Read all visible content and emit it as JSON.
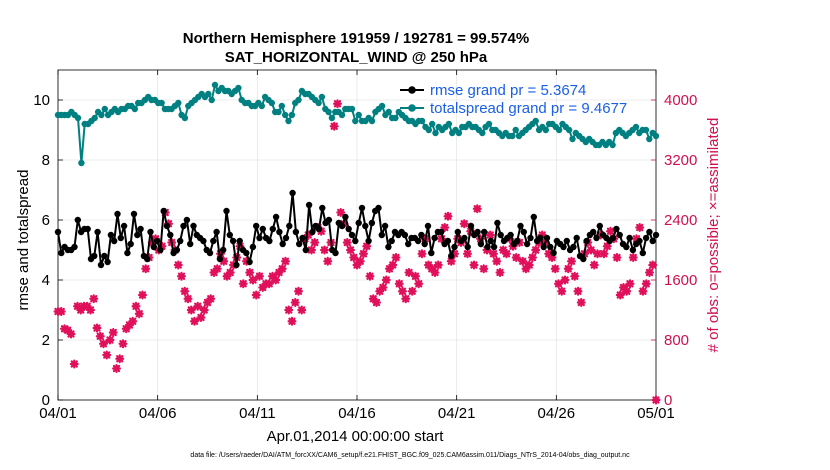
{
  "colors": {
    "rmse": "#000000",
    "totalspread": "#008080",
    "obs": "#E0105A",
    "axis_left": "#000000",
    "axis_right": "#D0104F",
    "legend_text": "#1A5FE8"
  },
  "chart_data": {
    "type": "line",
    "title": "Northern Hemisphere 191959 / 192781 = 99.574%",
    "subtitle": "SAT_HORIZONTAL_WIND @ 250 hPa",
    "xlabel": "Apr.01,2014 00:00:00 start",
    "ylabel_left": "rmse and totalspread",
    "ylabel_right": "# of obs: o=possible; ×=assimilated",
    "footnote": "data file: /Users/raeder/DAI/ATM_forcXX/CAM6_setup/f.e21.FHIST_BGC.f09_025.CAM6assim.011/Diags_NTrS_2014-04/obs_diag_output.nc",
    "xlim": [
      0,
      30
    ],
    "ylim_left": [
      0,
      11
    ],
    "ylim_right": [
      0,
      4400
    ],
    "x_ticks": [
      0,
      5,
      10,
      15,
      20,
      25,
      30
    ],
    "x_tick_labels": [
      "04/01",
      "04/06",
      "04/11",
      "04/16",
      "04/21",
      "04/26",
      "05/01"
    ],
    "y_ticks_left": [
      0,
      2,
      4,
      6,
      8,
      10
    ],
    "y_tick_labels_left": [
      "0",
      "2",
      "4",
      "6",
      "8",
      "10"
    ],
    "y_ticks_right": [
      0,
      800,
      1600,
      2400,
      3200,
      4000
    ],
    "y_tick_labels_right": [
      "0",
      "800",
      "1600",
      "2400",
      "3200",
      "4000"
    ],
    "grid": true,
    "legend_position": "top-right",
    "series": [
      {
        "name": "rmse grand pr = 5.3674",
        "axis": "left",
        "marker": "dot",
        "values": [
          5.6,
          4.9,
          5.1,
          5.0,
          5.0,
          5.1,
          6.0,
          5.6,
          5.7,
          5.7,
          4.7,
          4.8,
          5.6,
          4.5,
          4.8,
          4.6,
          5.5,
          5.3,
          6.2,
          5.4,
          5.8,
          4.9,
          5.2,
          6.2,
          5.5,
          5.7,
          4.8,
          4.7,
          5.6,
          5.1,
          5.3,
          5.0,
          6.3,
          5.8,
          5.5,
          4.9,
          5.0,
          5.3,
          5.8,
          6.0,
          5.2,
          5.8,
          5.5,
          5.4,
          5.3,
          5.0,
          4.9,
          5.3,
          5.6,
          4.7,
          5.0,
          6.3,
          5.5,
          5.3,
          4.5,
          5.3,
          5.0,
          4.9,
          4.6,
          5.1,
          5.8,
          5.4,
          5.7,
          5.4,
          5.3,
          5.7,
          6.1,
          5.6,
          5.2,
          5.4,
          5.8,
          6.9,
          5.6,
          5.2,
          5.4,
          5.0,
          6.5,
          5.6,
          5.8,
          5.7,
          6.4,
          5.9,
          6.0,
          5.0,
          4.9,
          5.9,
          5.8,
          6.1,
          5.7,
          5.5,
          5.3,
          5.9,
          6.4,
          5.8,
          5.3,
          5.9,
          6.3,
          6.4,
          5.5,
          5.8,
          5.1,
          5.3,
          5.6,
          5.5,
          5.6,
          5.5,
          5.2,
          5.4,
          5.4,
          5.3,
          5.5,
          5.2,
          5.8,
          4.9,
          5.4,
          5.6,
          5.6,
          5.2,
          5.3,
          4.8,
          5.1,
          5.6,
          5.3,
          5.4,
          5.1,
          5.8,
          5.5,
          5.6,
          5.2,
          5.6,
          5.1,
          5.3,
          5.1,
          5.9,
          5.5,
          5.3,
          5.4,
          5.5,
          5.2,
          5.3,
          5.8,
          5.6,
          5.2,
          5.4,
          6.1,
          5.3,
          5.4,
          5.1,
          5.4,
          5.1,
          4.9,
          5.3,
          5.2,
          5.1,
          5.3,
          5.0,
          5.1,
          5.4,
          4.8,
          4.7,
          5.3,
          5.5,
          5.6,
          5.4,
          5.8,
          5.5,
          5.4,
          5.3,
          5.4,
          5.7,
          5.5,
          5.2,
          5.1,
          5.4,
          5.0,
          5.2,
          5.3,
          4.9,
          5.4,
          5.6,
          5.3,
          5.5
        ]
      },
      {
        "name": "totalspread grand pr = 9.4677",
        "axis": "left",
        "marker": "dot",
        "values": [
          9.5,
          9.5,
          9.5,
          9.5,
          9.6,
          9.5,
          9.4,
          7.9,
          9.2,
          9.2,
          9.3,
          9.4,
          9.6,
          9.5,
          9.7,
          9.5,
          9.6,
          9.7,
          9.6,
          9.7,
          9.7,
          9.8,
          9.8,
          9.7,
          9.9,
          9.9,
          10.0,
          10.1,
          10.0,
          10.0,
          9.9,
          9.9,
          9.7,
          9.7,
          9.7,
          9.8,
          9.9,
          9.5,
          9.4,
          9.8,
          9.9,
          10.0,
          10.1,
          10.2,
          10.1,
          10.2,
          10.0,
          10.5,
          10.3,
          10.4,
          10.3,
          10.3,
          10.2,
          10.3,
          10.4,
          10.0,
          9.9,
          9.9,
          9.8,
          9.8,
          9.9,
          9.8,
          10.1,
          10.0,
          9.9,
          9.6,
          9.6,
          9.8,
          9.5,
          9.3,
          9.5,
          9.9,
          10.0,
          10.3,
          10.2,
          10.2,
          10.1,
          10.0,
          9.9,
          10.1,
          9.7,
          9.6,
          9.4,
          9.6,
          9.6,
          9.5,
          9.7,
          9.7,
          9.7,
          9.3,
          9.5,
          9.3,
          9.3,
          9.4,
          9.3,
          9.6,
          9.7,
          9.8,
          9.5,
          9.6,
          9.4,
          9.4,
          9.6,
          9.5,
          9.4,
          9.3,
          9.3,
          9.2,
          9.3,
          9.3,
          9.1,
          9.0,
          9.2,
          8.9,
          9.1,
          9.0,
          9.1,
          9.2,
          8.9,
          9.0,
          8.9,
          9.1,
          9.1,
          9.2,
          9.1,
          9.1,
          9.0,
          8.9,
          9.1,
          9.2,
          9.0,
          9.0,
          8.9,
          8.8,
          8.9,
          8.8,
          8.8,
          9.0,
          8.8,
          8.9,
          9.0,
          9.1,
          9.2,
          9.3,
          9.0,
          9.1,
          9.0,
          9.2,
          9.2,
          9.1,
          9.0,
          9.2,
          9.1,
          9.0,
          8.7,
          8.9,
          8.8,
          8.7,
          8.6,
          8.7,
          8.6,
          8.5,
          8.5,
          8.6,
          8.5,
          8.6,
          8.5,
          8.9,
          9.0,
          8.9,
          8.8,
          8.9,
          9.0,
          9.1,
          8.9,
          9.0,
          9.0,
          8.7,
          8.9,
          8.8
        ]
      }
    ],
    "obs_assimilated": {
      "axis": "right",
      "marker": "asterisk",
      "values": [
        1180,
        1180,
        950,
        930,
        880,
        480,
        1250,
        1200,
        1250,
        1250,
        1200,
        1350,
        960,
        850,
        750,
        600,
        800,
        900,
        420,
        550,
        750,
        950,
        1000,
        1050,
        1250,
        1150,
        1400,
        1750,
        1900,
        2100,
        2150,
        2000,
        2050,
        2500,
        2350,
        2100,
        2000,
        1800,
        1650,
        1450,
        1350,
        1200,
        1050,
        1250,
        1100,
        1200,
        1300,
        1350,
        1700,
        1750,
        1950,
        1850,
        1650,
        1700,
        1800,
        1900,
        2050,
        1550,
        1850,
        1700,
        1600,
        1400,
        1650,
        1500,
        1550,
        1550,
        1650,
        1600,
        1700,
        1750,
        1850,
        1200,
        1050,
        1300,
        1450,
        1200,
        2150,
        2200,
        2000,
        2100,
        2300,
        2250,
        2000,
        1850,
        2100,
        3650,
        3950,
        2500,
        2350,
        2100,
        2000,
        1900,
        1800,
        1850,
        1950,
        2050,
        1650,
        1350,
        1300,
        1450,
        1500,
        1600,
        1750,
        1800,
        1900,
        1550,
        1450,
        1350,
        1700,
        1450,
        1650,
        1550,
        1950,
        2150,
        1800,
        1750,
        1700,
        1800,
        2150,
        2300,
        2450,
        1850,
        1950,
        2150,
        2100,
        2350,
        1950,
        2250,
        1800,
        2550,
        2150,
        1750,
        2000,
        2200,
        1950,
        1850,
        1700,
        2000,
        1950,
        2150,
        2050,
        1900,
        2100,
        1850,
        1750,
        1800,
        1900,
        2000,
        2100,
        2200,
        2100,
        1950,
        1900,
        1750,
        1550,
        1450,
        1600,
        1750,
        1850,
        1650,
        1450,
        1300,
        1950,
        2100,
        2000,
        1800,
        1950,
        2200,
        1950,
        2050,
        2250,
        2150,
        1900,
        1400,
        1500,
        1450,
        1550,
        1900,
        2150,
        2300,
        1450,
        1550,
        1700,
        1800,
        0
      ]
    }
  }
}
